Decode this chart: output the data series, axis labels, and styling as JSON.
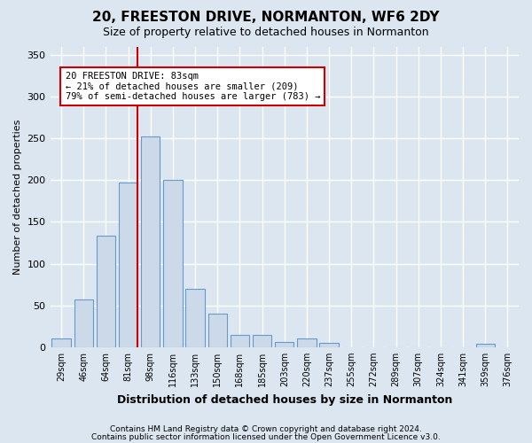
{
  "title": "20, FREESTON DRIVE, NORMANTON, WF6 2DY",
  "subtitle": "Size of property relative to detached houses in Normanton",
  "xlabel": "Distribution of detached houses by size in Normanton",
  "ylabel": "Number of detached properties",
  "categories": [
    "29sqm",
    "46sqm",
    "64sqm",
    "81sqm",
    "98sqm",
    "116sqm",
    "133sqm",
    "150sqm",
    "168sqm",
    "185sqm",
    "203sqm",
    "220sqm",
    "237sqm",
    "255sqm",
    "272sqm",
    "289sqm",
    "307sqm",
    "324sqm",
    "341sqm",
    "359sqm",
    "376sqm"
  ],
  "values": [
    10,
    57,
    133,
    197,
    252,
    200,
    70,
    40,
    15,
    15,
    6,
    10,
    5,
    0,
    0,
    0,
    0,
    0,
    0,
    4,
    0
  ],
  "bar_color": "#ccd9e8",
  "bar_edge_color": "#6699cc",
  "background_color": "#dce6f0",
  "fig_background_color": "#dce6f0",
  "grid_color": "#ffffff",
  "vline_color": "#cc0000",
  "vline_pos": 3.42,
  "annotation_text": "20 FREESTON DRIVE: 83sqm\n← 21% of detached houses are smaller (209)\n79% of semi-detached houses are larger (783) →",
  "annotation_box_facecolor": "#ffffff",
  "annotation_box_edgecolor": "#cc0000",
  "footer1": "Contains HM Land Registry data © Crown copyright and database right 2024.",
  "footer2": "Contains public sector information licensed under the Open Government Licence v3.0.",
  "ylim": [
    0,
    360
  ],
  "yticks": [
    0,
    50,
    100,
    150,
    200,
    250,
    300,
    350
  ]
}
